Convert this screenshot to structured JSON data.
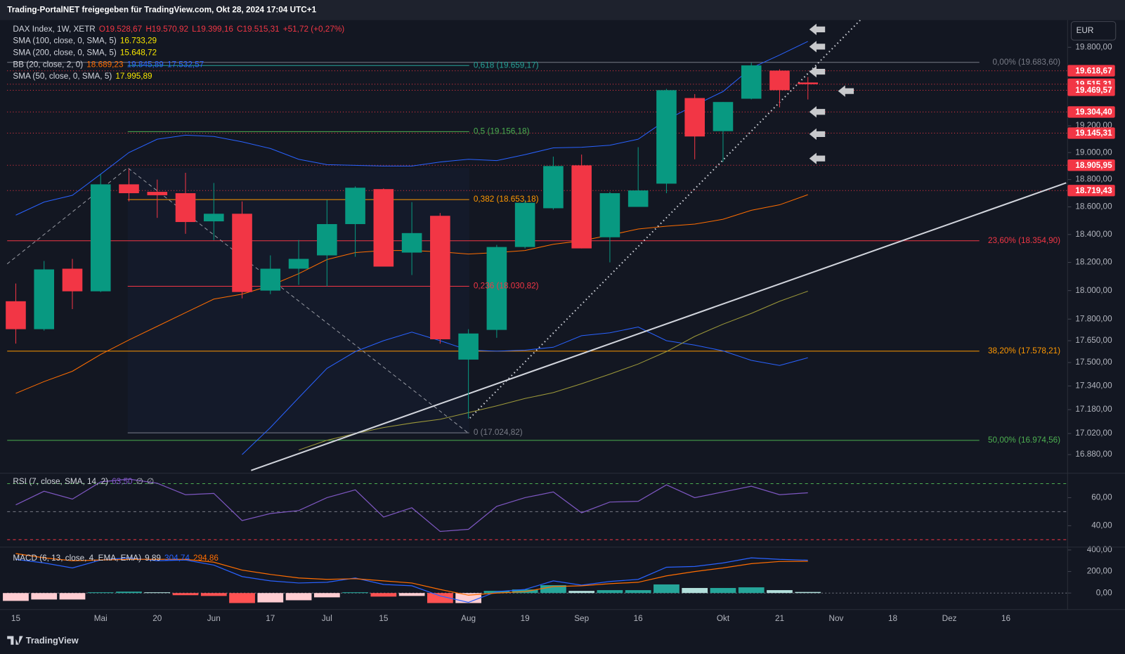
{
  "header": {
    "text": "Trading-PortalNET freigegeben für TradingView.com, Okt 28, 2024 17:04 UTC+1"
  },
  "footer": {
    "brand": "TradingView"
  },
  "currency": "EUR",
  "chart_data": [
    {
      "type": "candlestick",
      "log": true,
      "ylim": [
        16771,
        20012
      ],
      "yticks": [
        {
          "value": 19800,
          "label": "19.800,00"
        },
        {
          "value": 19200,
          "label": "19.200,00"
        },
        {
          "value": 19000,
          "label": "19.000,00"
        },
        {
          "value": 18800,
          "label": "18.800,00"
        },
        {
          "value": 18600,
          "label": "18.600,00"
        },
        {
          "value": 18400,
          "label": "18.400,00"
        },
        {
          "value": 18200,
          "label": "18.200,00"
        },
        {
          "value": 18000,
          "label": "18.000,00"
        },
        {
          "value": 17800,
          "label": "17.800,00"
        },
        {
          "value": 17650,
          "label": "17.650,00"
        },
        {
          "value": 17500,
          "label": "17.500,00"
        },
        {
          "value": 17340,
          "label": "17.340,00"
        },
        {
          "value": 17180,
          "label": "17.180,00"
        },
        {
          "value": 17020,
          "label": "17.020,00"
        },
        {
          "value": 16880,
          "label": "16.880,00"
        }
      ],
      "xticks": [
        "15",
        "Mai",
        "20",
        "Jun",
        "17",
        "Jul",
        "15",
        "Aug",
        "19",
        "Sep",
        "16",
        "Okt",
        "21",
        "Nov",
        "18",
        "Dez",
        "16"
      ],
      "up_color": "#089981",
      "down_color": "#f23645",
      "open": [
        17925,
        17730,
        18155,
        17995,
        18765,
        18710,
        18700,
        18495,
        18550,
        18000,
        18155,
        18250,
        18475,
        18730,
        18270,
        18535,
        17520,
        17725,
        18310,
        18590,
        18905,
        18380,
        18600,
        18770,
        19410,
        19160,
        19405,
        19620,
        19528.67
      ],
      "high": [
        18050,
        18210,
        18225,
        18840,
        18880,
        18800,
        18850,
        18775,
        18640,
        18250,
        18360,
        18650,
        18750,
        18735,
        18635,
        18555,
        17730,
        18325,
        18650,
        18970,
        18985,
        18710,
        19040,
        19480,
        19440,
        19380,
        19680,
        19630,
        19570.92
      ],
      "low": [
        17630,
        17720,
        17870,
        17990,
        18640,
        18520,
        18405,
        18360,
        17945,
        17975,
        18040,
        18030,
        18240,
        18170,
        18110,
        17630,
        17120,
        17670,
        18300,
        18580,
        18300,
        18200,
        18600,
        18700,
        18950,
        18930,
        19400,
        19340,
        19399.16
      ],
      "close": [
        17730,
        18150,
        17995,
        18765,
        18700,
        18685,
        18490,
        18550,
        17990,
        18155,
        18225,
        18475,
        18740,
        18170,
        18410,
        17660,
        17700,
        18310,
        18630,
        18900,
        18300,
        18700,
        18720,
        19470,
        19120,
        19380,
        19660,
        19470,
        19515.31
      ],
      "legend": [
        {
          "name": "DAX Index, 1W, XETR",
          "labels": [
            "O19.528,67",
            "H19.570,92",
            "L19.399,16",
            "C19.515,31",
            "+51,72 (+0,27%)"
          ],
          "label_colors": [
            "#f23645",
            "#f23645",
            "#f23645",
            "#f23645",
            "#f23645"
          ]
        },
        {
          "name": "SMA (100, close, 0, SMA, 5)",
          "labels": [
            "16.733,29"
          ],
          "label_colors": [
            "#f7e600"
          ]
        },
        {
          "name": "SMA (200, close, 0, SMA, 5)",
          "labels": [
            "15.648,72"
          ],
          "label_colors": [
            "#f7e600"
          ]
        },
        {
          "name": "BB (20, close, 2, 0)",
          "labels": [
            "18.689,23",
            "19.845,89",
            "17.532,57"
          ],
          "label_colors": [
            "#ff6d00",
            "#2962ff",
            "#2962ff"
          ]
        },
        {
          "name": "SMA (50, close, 0, SMA, 5)",
          "labels": [
            "17.995,89"
          ],
          "label_colors": [
            "#f7e600"
          ]
        }
      ],
      "series": [
        {
          "name": "BB (20, close, 2, 0)",
          "color": "#ff6d00",
          "band_color": "#2962ff",
          "values": [
            17290,
            17370,
            17440,
            17555,
            17655,
            17750,
            17845,
            17940,
            17975,
            18035,
            18120,
            18220,
            18270,
            18285,
            18285,
            18275,
            18260,
            18270,
            18285,
            18330,
            18355,
            18395,
            18440,
            18460,
            18475,
            18510,
            18575,
            18615,
            18689.23
          ],
          "upper": [
            18540,
            18635,
            18685,
            18840,
            19000,
            19100,
            19130,
            19120,
            19080,
            19030,
            18950,
            18910,
            18905,
            18900,
            18900,
            18930,
            18950,
            18940,
            18985,
            19035,
            19040,
            19055,
            19100,
            19245,
            19355,
            19460,
            19640,
            19740,
            19845.89
          ],
          "lower": [
            null,
            null,
            null,
            null,
            null,
            null,
            null,
            null,
            16880,
            17060,
            17260,
            17460,
            17575,
            17650,
            17710,
            17650,
            17585,
            17578,
            17585,
            17605,
            17685,
            17705,
            17745,
            17650,
            17620,
            17580,
            17515,
            17480,
            17532.57
          ]
        },
        {
          "name": "SMA (50, close, 0, SMA, 5)",
          "color": "#9e9a3a",
          "values": [
            null,
            null,
            null,
            null,
            null,
            null,
            null,
            null,
            null,
            null,
            16910,
            16975,
            17020,
            17060,
            17090,
            17115,
            17160,
            17205,
            17255,
            17295,
            17355,
            17420,
            17490,
            17575,
            17680,
            17765,
            17840,
            17925,
            17995.89
          ]
        }
      ],
      "fib_retracement": [
        {
          "value": 19659.17,
          "label": "0,618 (19.659,17)",
          "color": "#26a69a"
        },
        {
          "value": 19156.18,
          "label": "0,5 (19.156,18)",
          "color": "#4caf50"
        },
        {
          "value": 18653.18,
          "label": "0,382 (18.653,18)",
          "color": "#ff9800"
        },
        {
          "value": 18030.82,
          "label": "0,236 (18.030,82)",
          "color": "#f23645"
        },
        {
          "value": 17024.82,
          "label": "0 (17.024,82)",
          "color": "#787b86"
        }
      ],
      "fib_levels": [
        {
          "value": 19683.6,
          "label": "0,00% (19.683,60)",
          "color": "#787b86"
        },
        {
          "value": 18354.9,
          "label": "23,60% (18.354,90)",
          "color": "#f23645"
        },
        {
          "value": 17578.21,
          "label": "38,20% (17.578,21)",
          "color": "#ff9800"
        },
        {
          "value": 16974.56,
          "label": "50,00% (16.974,56)",
          "color": "#4caf50"
        }
      ],
      "price_line_color": "#f23645",
      "price_lines": [
        {
          "value": 19618.67,
          "label": "19.618,67"
        },
        {
          "value": 19515.31,
          "label": "19.515,31"
        },
        {
          "value": 19469.57,
          "label": "19.469,57"
        },
        {
          "value": 19304.4,
          "label": "19.304,40"
        },
        {
          "value": 19145.31,
          "label": "19.145,31"
        },
        {
          "value": 18905.95,
          "label": "18.905,95"
        },
        {
          "value": 18719.43,
          "label": "18.719,43"
        }
      ]
    },
    {
      "type": "line",
      "legend": {
        "name": "RSI (7, close, SMA, 14, 2)",
        "labels": [
          "63,50",
          "∅",
          "∅"
        ],
        "label_colors": [
          "#7e57c2",
          "#b2b5be",
          "#b2b5be"
        ]
      },
      "ylim": [
        26.2,
        76.4
      ],
      "yticks": [
        {
          "value": 60,
          "label": "60,00"
        },
        {
          "value": 40,
          "label": "40,00"
        }
      ],
      "levels": [
        {
          "value": 70,
          "color": "#4caf50"
        },
        {
          "value": 50,
          "color": "#787b86"
        },
        {
          "value": 30,
          "color": "#f23645"
        }
      ],
      "series": [
        {
          "name": "RSI (7, close, SMA, 14, 2)",
          "color": "#7e57c2",
          "values": [
            54.9,
            64.6,
            59.0,
            71.3,
            73.3,
            70.3,
            62.1,
            63.1,
            43.6,
            48.7,
            50.8,
            60,
            65.6,
            46.2,
            52.8,
            35.9,
            37.4,
            53.8,
            60,
            64.1,
            49.2,
            56.9,
            57.4,
            69.2,
            60,
            64.1,
            68.2,
            62.1,
            63.5
          ]
        }
      ]
    },
    {
      "type": "macd",
      "legend": {
        "name": "MACD (6, 13, close, 4, EMA, EMA)",
        "labels": [
          "9,89",
          "304,74",
          "294,86"
        ],
        "label_colors": [
          "#d1d4dc",
          "#2962ff",
          "#ff6d00"
        ]
      },
      "ylim": [
        -140,
        413
      ],
      "yticks": [
        {
          "value": 400,
          "label": "400,00"
        },
        {
          "value": 200,
          "label": "200,00"
        },
        {
          "value": 0,
          "label": "0,00"
        }
      ],
      "hist_colors": [
        "#26a69a",
        "#b2dfdb",
        "#ff5252",
        "#ffcdd2"
      ],
      "histogram": [
        -73,
        -60,
        -60,
        7,
        13,
        7,
        -20,
        -27,
        -93,
        -87,
        -67,
        -40,
        7,
        -33,
        -27,
        -93,
        -93,
        20,
        33,
        73,
        20,
        27,
        27,
        80,
        47,
        47,
        53,
        27,
        9.89
      ],
      "series": [
        {
          "name": "MACD",
          "color": "#2962ff",
          "values": [
            313,
            280,
            233,
            307,
            327,
            300,
            307,
            260,
            153,
            113,
            93,
            100,
            140,
            80,
            67,
            -27,
            -87,
            13,
            33,
            113,
            73,
            107,
            127,
            240,
            247,
            280,
            327,
            313,
            304.74
          ]
        },
        {
          "name": "Signal",
          "color": "#ff6d00",
          "values": [
            367,
            327,
            300,
            307,
            313,
            313,
            313,
            287,
            213,
            173,
            140,
            127,
            133,
            113,
            93,
            33,
            -20,
            0,
            13,
            60,
            67,
            87,
            100,
            160,
            200,
            233,
            273,
            293,
            294.86
          ]
        }
      ]
    }
  ]
}
